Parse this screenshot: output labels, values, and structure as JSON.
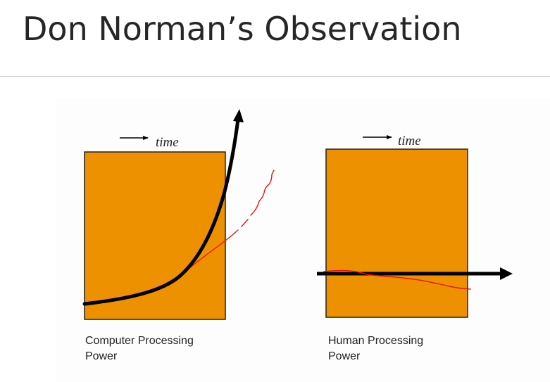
{
  "slide": {
    "title": "Don Norman’s Observation"
  },
  "left_panel": {
    "time_label": "time",
    "caption_line1": "Computer Processing",
    "caption_line2": "Power"
  },
  "right_panel": {
    "time_label": "time",
    "caption_line1": "Human Processing",
    "caption_line2": "Power"
  },
  "colors": {
    "box_fill": "#ee9100",
    "box_stroke": "#222222",
    "curve": "#000000",
    "annotation": "#ee1111",
    "title": "#262626"
  }
}
